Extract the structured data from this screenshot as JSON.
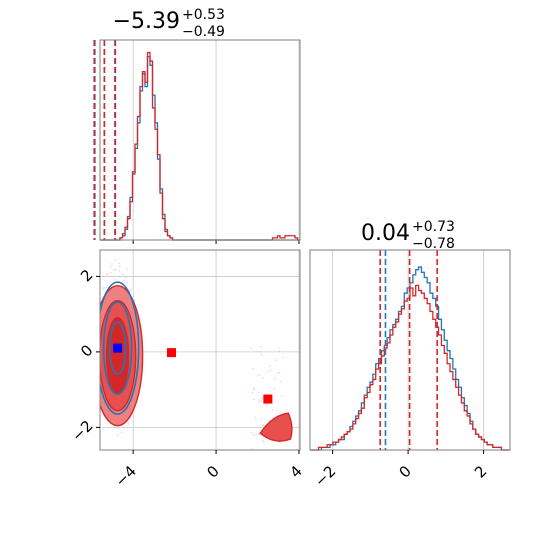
{
  "figure": {
    "titles": {
      "param1": {
        "main": "−5.39",
        "sup": "+0.53",
        "sub": "−0.49"
      },
      "param2": {
        "main": "0.04",
        "sup": "+0.73",
        "sub": "−0.78"
      }
    }
  },
  "chart_data": {
    "type": "corner",
    "colors": {
      "blue": "#1f77b4",
      "red": "#d62728",
      "red_fill": "#f08080",
      "grid": "#c8c8c8"
    },
    "axes": {
      "param1_range": [
        -5.6,
        4.05
      ],
      "param2_range": [
        -2.6,
        2.7
      ],
      "param1_ticks": [
        -4,
        0,
        4
      ],
      "param1_tick_labels": [
        "−4",
        "0",
        "4"
      ],
      "param2_ticks": [
        -2,
        0,
        2
      ],
      "param2_tick_labels": [
        "−2",
        "0",
        "2"
      ],
      "grid": true
    },
    "hist_param1": {
      "bin_edges_range": [
        -5.6,
        4.05
      ],
      "blue_counts": [
        0,
        0,
        0,
        0,
        0,
        0,
        0,
        0,
        1,
        3,
        5,
        11,
        20,
        31,
        43,
        55,
        70,
        78,
        72,
        86,
        82,
        68,
        55,
        38,
        24,
        12,
        5,
        2,
        1,
        0,
        0,
        0,
        0,
        0,
        0,
        0,
        0,
        0,
        0,
        0,
        0,
        0,
        0,
        0,
        0,
        0,
        0,
        0,
        0,
        0,
        0,
        0,
        0,
        0,
        0,
        0,
        0,
        0,
        0,
        0,
        0,
        0,
        0,
        0,
        0,
        0,
        0,
        0,
        0,
        0,
        0,
        0,
        0,
        0,
        0,
        0,
        0,
        0,
        0,
        0
      ],
      "red_counts": [
        0,
        0,
        0,
        0,
        0,
        0,
        0,
        0,
        1,
        2,
        6,
        10,
        18,
        32,
        45,
        58,
        72,
        79,
        74,
        88,
        84,
        62,
        52,
        40,
        22,
        10,
        4,
        2,
        1,
        0,
        0,
        0,
        0,
        0,
        0,
        0,
        0,
        0,
        0,
        0,
        0,
        0,
        0,
        0,
        0,
        0,
        0,
        0,
        0,
        0,
        0,
        0,
        0,
        0,
        0,
        0,
        0,
        0,
        0,
        0,
        0,
        0,
        0,
        0,
        0,
        0,
        0,
        0,
        0,
        1,
        1,
        2,
        1,
        1,
        2,
        2,
        2,
        2,
        1,
        0
      ],
      "quantiles_red": [
        -5.88,
        -5.39,
        -4.86
      ],
      "quantiles_blue": [
        -5.85,
        -5.39,
        -4.88
      ],
      "ylim": [
        0,
        92
      ]
    },
    "hist_param2": {
      "bin_edges_range": [
        -2.6,
        2.7
      ],
      "blue_counts": [
        0,
        0,
        0,
        0,
        1,
        1,
        1,
        2,
        2,
        3,
        4,
        4,
        6,
        7,
        9,
        11,
        13,
        15,
        18,
        21,
        24,
        26,
        29,
        33,
        35,
        38,
        40,
        43,
        46,
        48,
        50,
        53,
        55,
        60,
        62,
        64,
        67,
        69,
        70,
        68,
        66,
        64,
        60,
        58,
        55,
        50,
        46,
        42,
        38,
        35,
        31,
        27,
        24,
        20,
        17,
        14,
        11,
        8,
        6,
        5,
        4,
        3,
        2,
        2,
        1,
        1,
        1,
        0,
        0,
        0
      ],
      "red_counts": [
        0,
        0,
        0,
        1,
        1,
        1,
        2,
        2,
        3,
        3,
        4,
        5,
        6,
        7,
        8,
        10,
        12,
        14,
        16,
        20,
        22,
        25,
        27,
        31,
        33,
        36,
        39,
        41,
        44,
        47,
        49,
        52,
        54,
        57,
        58,
        62,
        59,
        63,
        61,
        60,
        58,
        56,
        53,
        50,
        47,
        44,
        40,
        37,
        33,
        30,
        27,
        24,
        21,
        18,
        15,
        13,
        10,
        8,
        6,
        5,
        4,
        3,
        2,
        2,
        1,
        1,
        1,
        0,
        0,
        0
      ],
      "quantiles_red": [
        -0.74,
        0.04,
        0.77
      ],
      "quantiles_blue": [
        -0.6
      ],
      "ylim": [
        0,
        75
      ]
    },
    "contour": {
      "blue_center": [
        -4.75,
        0.1
      ],
      "red_center": [
        -4.75,
        -0.1
      ],
      "blue_marker": [
        -4.75,
        0.1
      ],
      "red_markers": [
        [
          -2.15,
          -0.02
        ],
        [
          2.5,
          -1.25
        ]
      ],
      "secondary_blob_center": [
        3.1,
        -2.1
      ]
    }
  }
}
